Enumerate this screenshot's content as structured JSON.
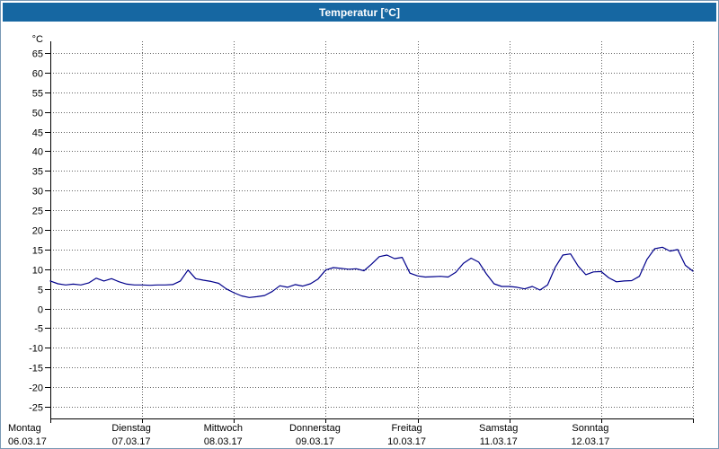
{
  "window": {
    "title": "Temperatur [°C]"
  },
  "style": {
    "titlebar_color": "#1667a2",
    "grid_color": "#606060",
    "axis_color": "#000000",
    "plot_bg": "#ffffff",
    "line_color": "#00008b"
  },
  "chart_data": {
    "type": "line",
    "title": "Temperatur [°C]",
    "ylabel": "°C",
    "ylim": [
      -25,
      65
    ],
    "ytick_step": 5,
    "grid": "dotted",
    "legend": "none",
    "x_axis": {
      "unit": "hours",
      "range": [
        0,
        168
      ],
      "day_width_hours": 24
    },
    "days": [
      {
        "name": "Montag",
        "date": "06.03.17"
      },
      {
        "name": "Dienstag",
        "date": "07.03.17"
      },
      {
        "name": "Mittwoch",
        "date": "08.03.17"
      },
      {
        "name": "Donnerstag",
        "date": "09.03.17"
      },
      {
        "name": "Freitag",
        "date": "10.03.17"
      },
      {
        "name": "Samstag",
        "date": "11.03.17"
      },
      {
        "name": "Sonntag",
        "date": "12.03.17"
      }
    ],
    "series": [
      {
        "name": "Temperatur",
        "color": "#00008b",
        "x": [
          0,
          2,
          4,
          6,
          8,
          10,
          12,
          14,
          16,
          18,
          20,
          22,
          24,
          26,
          28,
          30,
          32,
          34,
          36,
          38,
          40,
          42,
          44,
          46,
          48,
          50,
          52,
          54,
          56,
          58,
          60,
          62,
          64,
          66,
          68,
          70,
          72,
          74,
          76,
          78,
          80,
          82,
          84,
          86,
          88,
          90,
          92,
          94,
          96,
          98,
          100,
          102,
          104,
          106,
          108,
          110,
          112,
          114,
          116,
          118,
          120,
          122,
          124,
          126,
          128,
          130,
          132,
          134,
          136,
          138,
          140,
          142,
          144,
          146,
          148,
          150,
          152,
          154,
          156,
          158,
          160,
          162,
          164,
          166,
          168
        ],
        "values": [
          7.0,
          6.3,
          6.0,
          6.2,
          6.0,
          6.5,
          7.7,
          7.0,
          7.6,
          6.8,
          6.2,
          6.0,
          6.0,
          5.9,
          6.0,
          6.0,
          6.1,
          7.0,
          9.8,
          7.6,
          7.2,
          6.9,
          6.4,
          5.0,
          4.0,
          3.2,
          2.8,
          3.0,
          3.3,
          4.3,
          5.8,
          5.4,
          6.1,
          5.7,
          6.3,
          7.5,
          9.8,
          10.4,
          10.2,
          10.0,
          10.1,
          9.6,
          11.3,
          13.2,
          13.6,
          12.7,
          13.0,
          9.0,
          8.3,
          8.0,
          8.1,
          8.2,
          8.0,
          9.2,
          11.5,
          12.8,
          11.8,
          8.8,
          6.3,
          5.6,
          5.6,
          5.4,
          5.0,
          5.6,
          4.7,
          6.0,
          10.5,
          13.6,
          13.9,
          10.8,
          8.6,
          9.3,
          9.4,
          7.8,
          6.8,
          7.0,
          7.1,
          8.2,
          12.5,
          15.2,
          15.6,
          14.6,
          15.0,
          11.0,
          9.5
        ]
      }
    ]
  }
}
